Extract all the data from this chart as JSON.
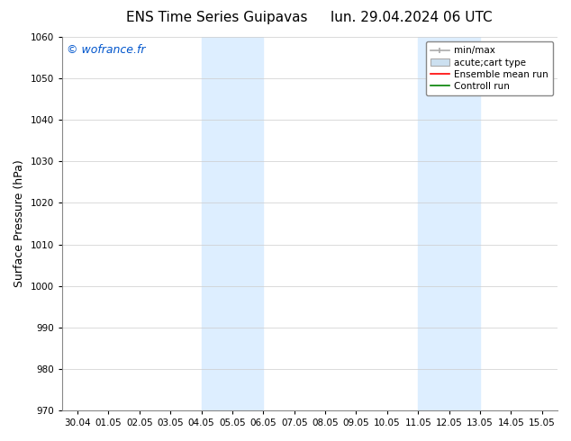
{
  "title_left": "ENS Time Series Guipavas",
  "title_right": "lun. 29.04.2024 06 UTC",
  "ylabel": "Surface Pressure (hPa)",
  "ylim": [
    970,
    1060
  ],
  "yticks": [
    970,
    980,
    990,
    1000,
    1010,
    1020,
    1030,
    1040,
    1050,
    1060
  ],
  "xtick_labels": [
    "30.04",
    "01.05",
    "02.05",
    "03.05",
    "04.05",
    "05.05",
    "06.05",
    "07.05",
    "08.05",
    "09.05",
    "10.05",
    "11.05",
    "12.05",
    "13.05",
    "14.05",
    "15.05"
  ],
  "xtick_positions": [
    0,
    1,
    2,
    3,
    4,
    5,
    6,
    7,
    8,
    9,
    10,
    11,
    12,
    13,
    14,
    15
  ],
  "xlim": [
    -0.5,
    15.5
  ],
  "shaded_bands": [
    {
      "x_start": 4,
      "x_end": 6
    },
    {
      "x_start": 11,
      "x_end": 13
    }
  ],
  "band_color": "#ddeeff",
  "watermark_text": "© wofrance.fr",
  "watermark_color": "#0055cc",
  "legend_entries": [
    {
      "label": "min/max",
      "color": "#aaaaaa",
      "type": "errorbar"
    },
    {
      "label": "acute;cart type",
      "color": "#cce0f0",
      "type": "box"
    },
    {
      "label": "Ensemble mean run",
      "color": "red",
      "type": "line"
    },
    {
      "label": "Controll run",
      "color": "green",
      "type": "line"
    }
  ],
  "bg_color": "#ffffff",
  "grid_color": "#cccccc",
  "title_fontsize": 11,
  "tick_fontsize": 7.5,
  "label_fontsize": 9,
  "watermark_fontsize": 9,
  "legend_fontsize": 7.5
}
